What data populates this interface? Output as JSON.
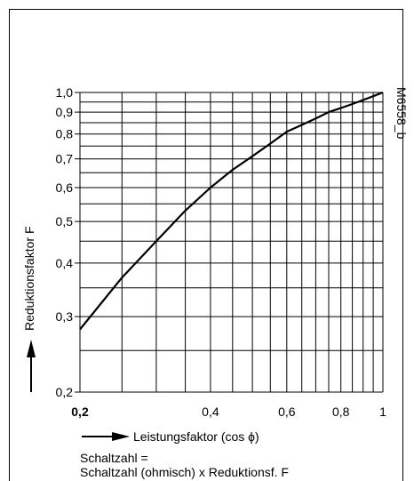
{
  "chart_data": {
    "type": "line",
    "x_scale": "log",
    "y_scale": "log",
    "xlim": [
      0.2,
      1.0
    ],
    "ylim": [
      0.2,
      1.0
    ],
    "x_minor_ticks": [
      0.2,
      0.25,
      0.3,
      0.35,
      0.4,
      0.45,
      0.5,
      0.55,
      0.6,
      0.65,
      0.7,
      0.75,
      0.8,
      0.85,
      0.9,
      0.95,
      1.0
    ],
    "y_minor_ticks": [
      0.2,
      0.25,
      0.3,
      0.35,
      0.4,
      0.45,
      0.5,
      0.55,
      0.6,
      0.65,
      0.7,
      0.75,
      0.8,
      0.85,
      0.9,
      0.95,
      1.0
    ],
    "x_tick_labels": [
      {
        "value": 0.2,
        "label": "0,2",
        "bold": true
      },
      {
        "value": 0.4,
        "label": "0,4"
      },
      {
        "value": 0.6,
        "label": "0,6"
      },
      {
        "value": 0.8,
        "label": "0,8"
      },
      {
        "value": 1.0,
        "label": "1"
      }
    ],
    "y_tick_labels": [
      {
        "value": 1.0,
        "label": "1,0"
      },
      {
        "value": 0.9,
        "label": "0,9"
      },
      {
        "value": 0.8,
        "label": "0,8"
      },
      {
        "value": 0.7,
        "label": "0,7"
      },
      {
        "value": 0.6,
        "label": "0,6"
      },
      {
        "value": 0.5,
        "label": "0,5"
      },
      {
        "value": 0.4,
        "label": "0,4"
      },
      {
        "value": 0.3,
        "label": "0,3"
      },
      {
        "value": 0.2,
        "label": "0,2"
      }
    ],
    "series": [
      {
        "x": [
          0.2,
          0.25,
          0.3,
          0.35,
          0.4,
          0.45,
          0.5,
          0.55,
          0.6,
          0.65,
          0.7,
          0.75,
          0.8,
          0.85,
          0.9,
          0.95,
          1.0
        ],
        "y": [
          0.28,
          0.37,
          0.45,
          0.53,
          0.6,
          0.66,
          0.71,
          0.76,
          0.81,
          0.84,
          0.87,
          0.9,
          0.92,
          0.94,
          0.96,
          0.98,
          1.0
        ],
        "color": "#000000"
      }
    ],
    "xlabel": "Leistungsfaktor (cos ϕ)",
    "ylabel": "Reduktionsfaktor F",
    "figure_id": "M6558_b",
    "grid": true
  },
  "notes": {
    "line1": "Schaltzahl =",
    "line2": "Schaltzahl (ohmisch) x Reduktionsf. F"
  }
}
